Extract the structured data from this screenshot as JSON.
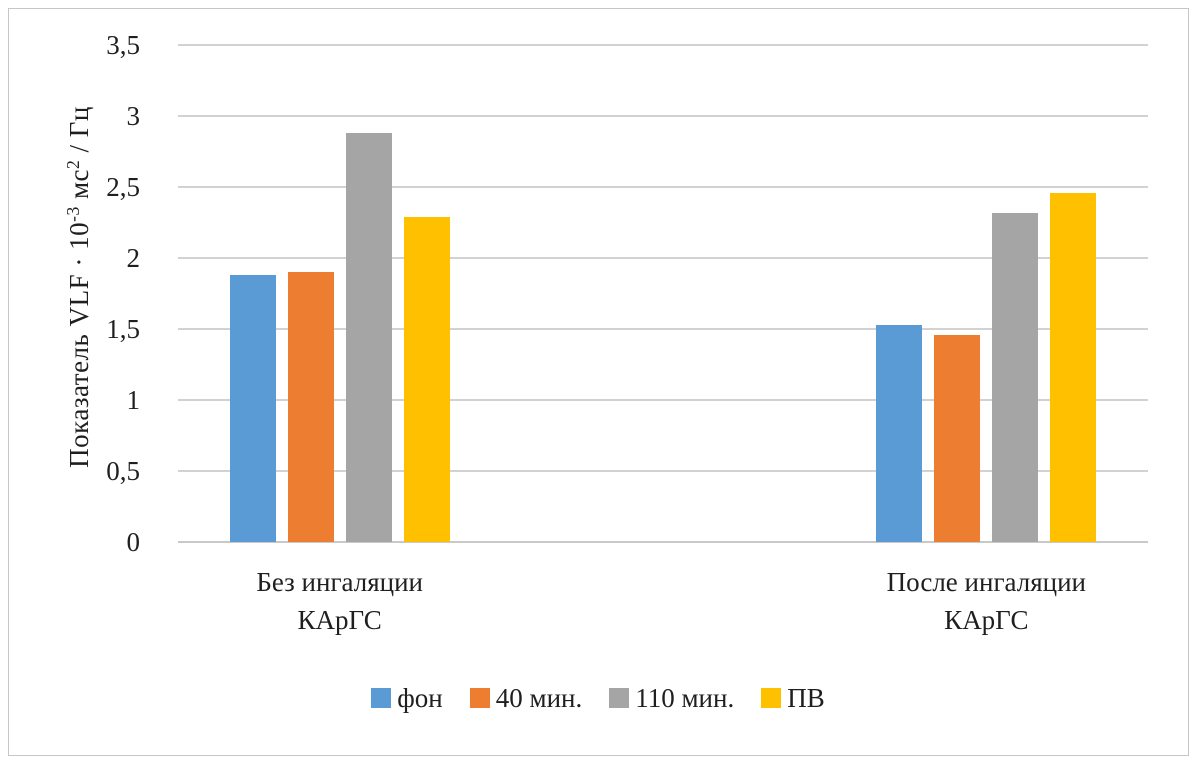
{
  "chart_data": {
    "type": "bar",
    "title": "",
    "ylabel_text": "Показатель VLF · 10-3 мс2 / Гц",
    "ylabel_parts": [
      {
        "text": "Показатель VLF · 10"
      },
      {
        "text": "-3",
        "sup": true
      },
      {
        "text": " мс"
      },
      {
        "text": "2",
        "sup": true
      },
      {
        "text": " / Гц"
      }
    ],
    "xlabel": "",
    "ylim": [
      0,
      3.5
    ],
    "y_ticks": [
      {
        "value": 0,
        "label": "0"
      },
      {
        "value": 0.5,
        "label": "0,5"
      },
      {
        "value": 1,
        "label": "1"
      },
      {
        "value": 1.5,
        "label": "1,5"
      },
      {
        "value": 2,
        "label": "2"
      },
      {
        "value": 2.5,
        "label": "2,5"
      },
      {
        "value": 3,
        "label": "3"
      },
      {
        "value": 3.5,
        "label": "3,5"
      }
    ],
    "grid": true,
    "grid_color": "#d2d2d2",
    "axis_line_color": "#c9c9c9",
    "num_slots": 3,
    "categories": [
      {
        "label": "Без ингаляции\nКАрГС",
        "slot": 0
      },
      {
        "label": "После ингаляции\nКАрГС",
        "slot": 2
      }
    ],
    "series": [
      {
        "name": "фон",
        "color": "#5B9BD5",
        "values": [
          1.88,
          1.53
        ]
      },
      {
        "name": "40 мин.",
        "color": "#ED7D31",
        "values": [
          1.9,
          1.46
        ]
      },
      {
        "name": "110 мин.",
        "color": "#A5A5A5",
        "values": [
          2.88,
          2.32
        ]
      },
      {
        "name": "ПВ",
        "color": "#FFC000",
        "values": [
          2.29,
          2.46
        ]
      }
    ],
    "legend_position": "bottom"
  }
}
